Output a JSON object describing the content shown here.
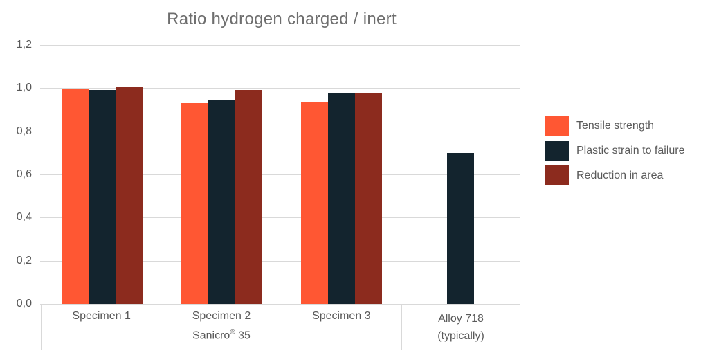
{
  "chart_data": {
    "type": "bar",
    "title": "Ratio hydrogen charged / inert",
    "categories": [
      {
        "label": "Specimen 1"
      },
      {
        "label": "Specimen 2"
      },
      {
        "label": "Specimen 3"
      },
      {
        "label": "Alloy 718",
        "label_line2": "(typically)"
      }
    ],
    "group_label": {
      "pre": "Sanicro",
      "sup": "®",
      "post": " 35"
    },
    "group_span_categories": [
      "Specimen 1",
      "Specimen 2",
      "Specimen 3"
    ],
    "series": [
      {
        "name": "Tensile strength",
        "color": "#FF5733",
        "values": [
          0.995,
          0.93,
          0.935,
          null
        ]
      },
      {
        "name": "Plastic strain to failure",
        "color": "#13242E",
        "values": [
          0.99,
          0.945,
          0.975,
          0.7
        ]
      },
      {
        "name": "Reduction in area",
        "color": "#8C2B1E",
        "values": [
          1.005,
          0.99,
          0.975,
          null
        ]
      }
    ],
    "yticks": [
      {
        "label": "0,0",
        "value": 0.0
      },
      {
        "label": "0,2",
        "value": 0.2
      },
      {
        "label": "0,4",
        "value": 0.4
      },
      {
        "label": "0,6",
        "value": 0.6
      },
      {
        "label": "0,8",
        "value": 0.8
      },
      {
        "label": "1,0",
        "value": 1.0
      },
      {
        "label": "1,2",
        "value": 1.2
      }
    ],
    "ylim": [
      0,
      1.2
    ],
    "grid": true,
    "legend_position": "right",
    "colors": {
      "gridline": "#D9D9D9",
      "axis_text": "#595959",
      "title_text": "#6E6E6E",
      "background": "#FFFFFF"
    }
  }
}
